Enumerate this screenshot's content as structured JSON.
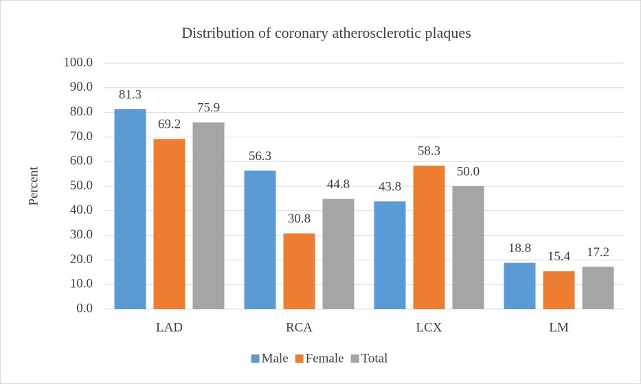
{
  "chart_data": {
    "type": "bar",
    "title": "Distribution of coronary atherosclerotic plaques",
    "ylabel": "Percent",
    "categories": [
      "LAD",
      "RCA",
      "LCX",
      "LM"
    ],
    "series": [
      {
        "name": "Male",
        "color": "#5b9bd5",
        "values": [
          81.3,
          56.3,
          43.8,
          18.8
        ],
        "value_labels": [
          "81.3",
          "56.3",
          "43.8",
          "18.8"
        ]
      },
      {
        "name": "Female",
        "color": "#ed7d31",
        "values": [
          69.2,
          30.8,
          58.3,
          15.4
        ],
        "value_labels": [
          "69.2",
          "30.8",
          "58.3",
          "15.4"
        ]
      },
      {
        "name": "Total",
        "color": "#a5a5a5",
        "values": [
          75.9,
          44.8,
          50.0,
          17.2
        ],
        "value_labels": [
          "75.9",
          "44.8",
          "50.0",
          "17.2"
        ]
      }
    ],
    "ylim": [
      0,
      100
    ],
    "yticks": [
      {
        "value": 0,
        "label": "0.0"
      },
      {
        "value": 10,
        "label": "10.0"
      },
      {
        "value": 20,
        "label": "20.0"
      },
      {
        "value": 30,
        "label": "30.0"
      },
      {
        "value": 40,
        "label": "40.0"
      },
      {
        "value": 50,
        "label": "50.0"
      },
      {
        "value": 60,
        "label": "60.0"
      },
      {
        "value": 70,
        "label": "70.0"
      },
      {
        "value": 80,
        "label": "80.0"
      },
      {
        "value": 90,
        "label": "90.0"
      },
      {
        "value": 100,
        "label": "100.0"
      }
    ],
    "grid": true,
    "legend": "bottom"
  }
}
